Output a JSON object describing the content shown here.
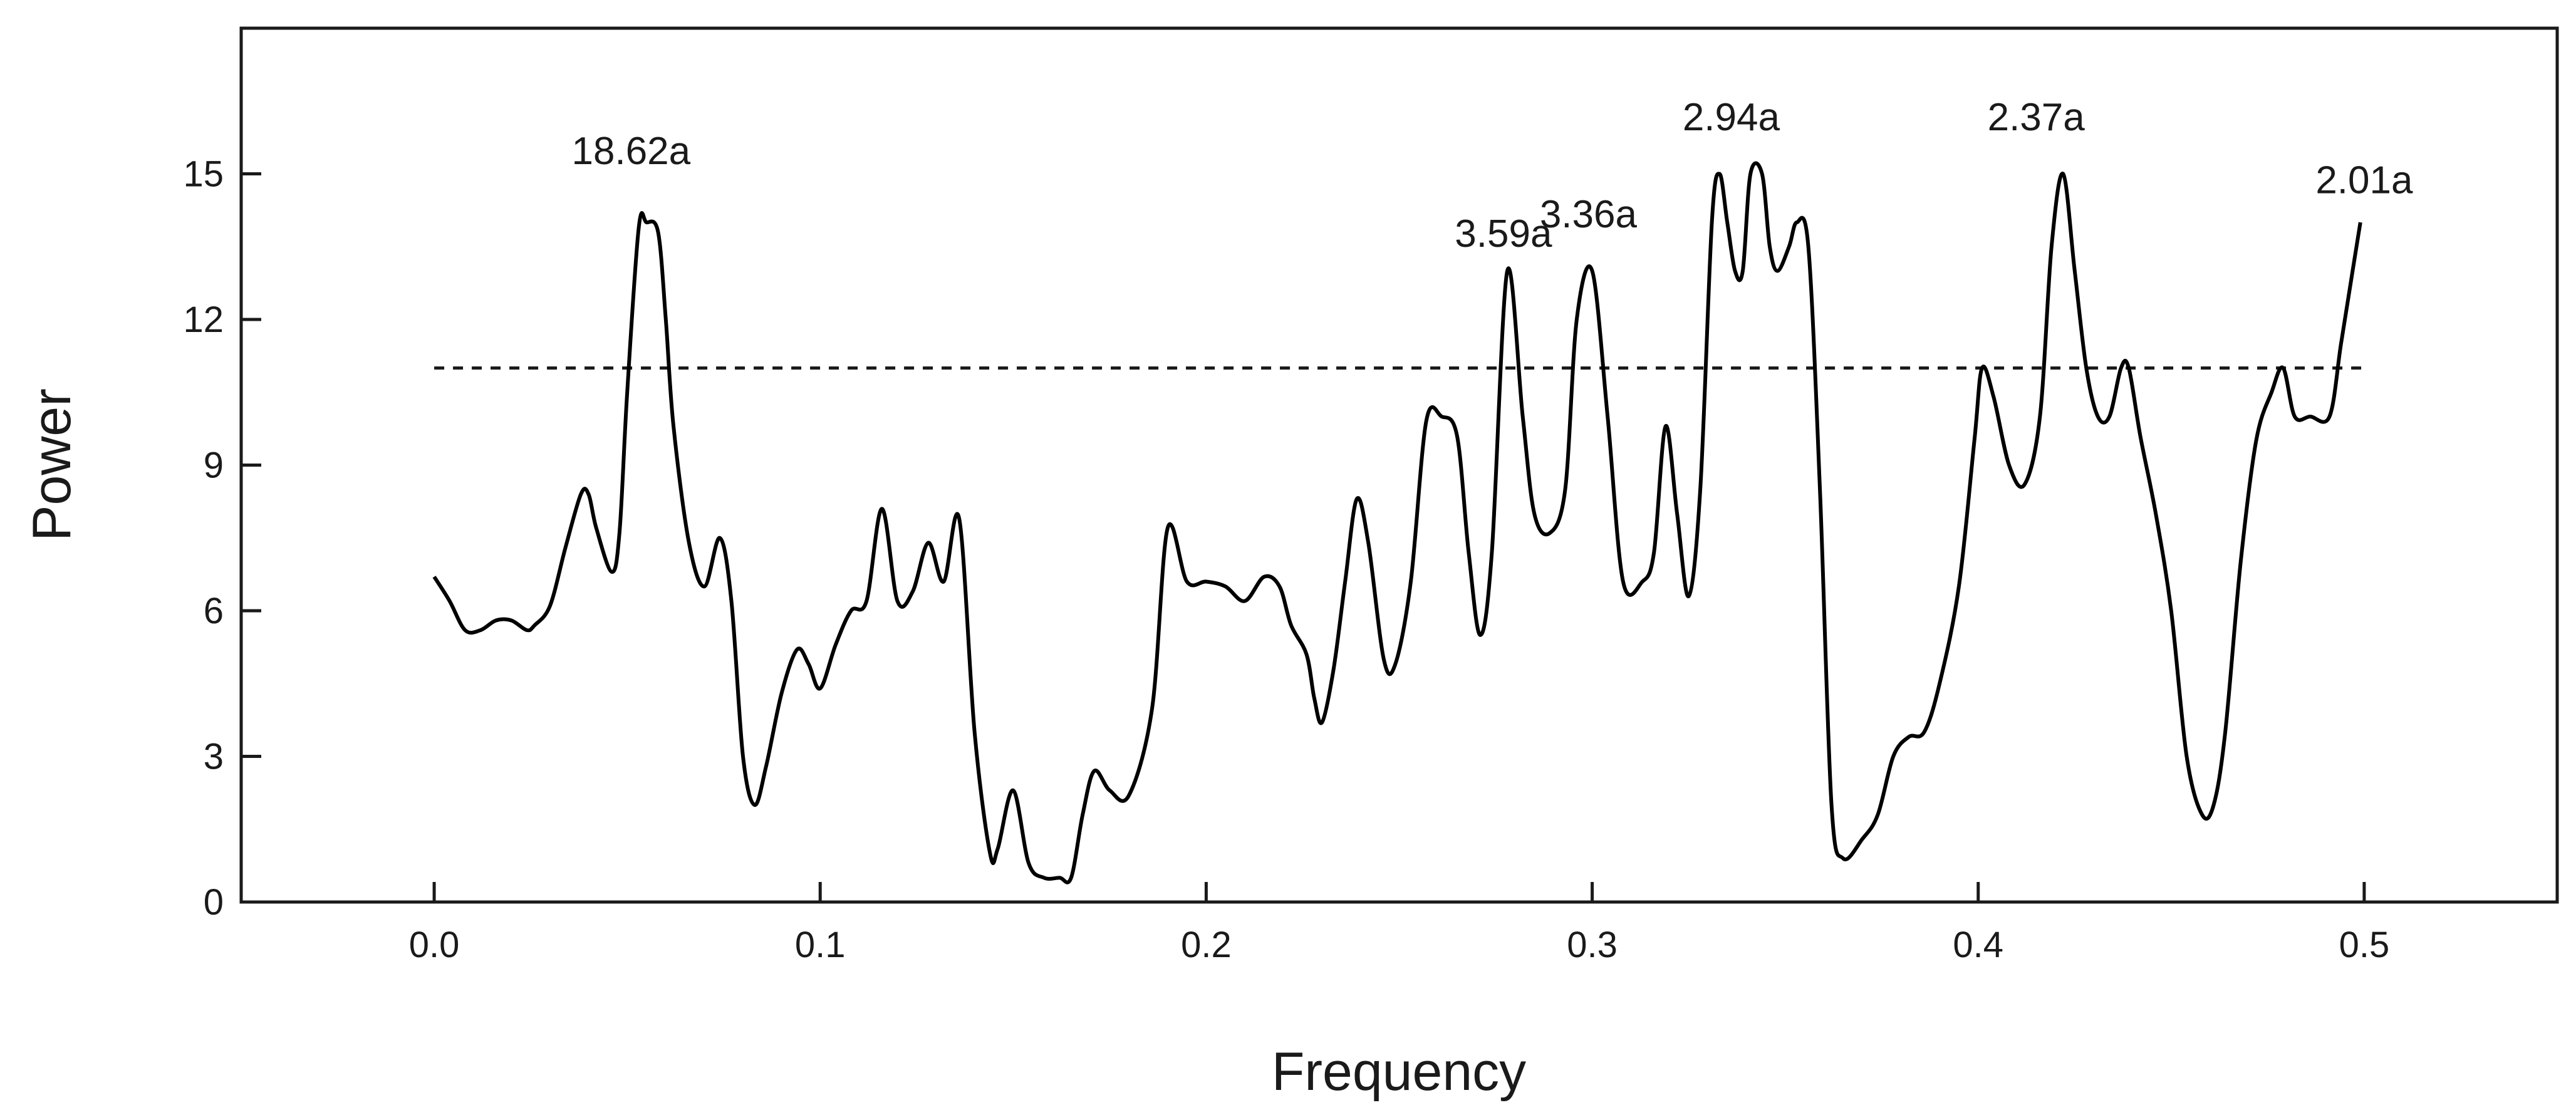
{
  "chart_data": {
    "type": "line",
    "xlabel": "Frequency",
    "ylabel": "Power",
    "xlim": [
      -0.05,
      0.55
    ],
    "ylim": [
      0,
      18
    ],
    "x_ticks": [
      0.0,
      0.1,
      0.2,
      0.3,
      0.4,
      0.5
    ],
    "x_tick_labels": [
      "0.0",
      "0.1",
      "0.2",
      "0.3",
      "0.4",
      "0.5"
    ],
    "y_ticks": [
      0,
      3,
      6,
      9,
      12,
      15
    ],
    "y_tick_labels": [
      "0",
      "3",
      "6",
      "9",
      "12",
      "15"
    ],
    "grid": false,
    "threshold": {
      "value": 11,
      "x_range": [
        0.0,
        0.5
      ],
      "style": "dashed"
    },
    "annotations": [
      {
        "text": "18.62a",
        "x": 0.051,
        "y": 15.2
      },
      {
        "text": "3.59a",
        "x": 0.277,
        "y": 13.5
      },
      {
        "text": "3.36a",
        "x": 0.299,
        "y": 13.9
      },
      {
        "text": "2.94a",
        "x": 0.336,
        "y": 15.9
      },
      {
        "text": "2.37a",
        "x": 0.415,
        "y": 15.9
      },
      {
        "text": "2.01a",
        "x": 0.5,
        "y": 14.6
      }
    ],
    "series": [
      {
        "x": [
          0.0,
          0.004,
          0.008,
          0.012,
          0.016,
          0.02,
          0.024,
          0.026,
          0.03,
          0.034,
          0.038,
          0.04,
          0.042,
          0.046,
          0.048,
          0.05,
          0.053,
          0.055,
          0.058,
          0.06,
          0.062,
          0.066,
          0.07,
          0.074,
          0.077,
          0.08,
          0.083,
          0.086,
          0.09,
          0.094,
          0.097,
          0.1,
          0.104,
          0.108,
          0.112,
          0.116,
          0.12,
          0.124,
          0.128,
          0.132,
          0.136,
          0.14,
          0.144,
          0.146,
          0.15,
          0.154,
          0.158,
          0.162,
          0.165,
          0.168,
          0.171,
          0.175,
          0.18,
          0.186,
          0.19,
          0.195,
          0.2,
          0.205,
          0.21,
          0.215,
          0.219,
          0.222,
          0.226,
          0.228,
          0.23,
          0.233,
          0.236,
          0.239,
          0.242,
          0.246,
          0.249,
          0.253,
          0.257,
          0.261,
          0.265,
          0.268,
          0.271,
          0.274,
          0.278,
          0.282,
          0.285,
          0.289,
          0.293,
          0.296,
          0.3,
          0.304,
          0.308,
          0.313,
          0.316,
          0.319,
          0.322,
          0.325,
          0.328,
          0.331,
          0.333,
          0.335,
          0.337,
          0.339,
          0.341,
          0.344,
          0.346,
          0.348,
          0.351,
          0.353,
          0.356,
          0.359,
          0.362,
          0.365,
          0.37,
          0.374,
          0.378,
          0.382,
          0.386,
          0.39,
          0.395,
          0.399,
          0.401,
          0.404,
          0.408,
          0.412,
          0.416,
          0.419,
          0.422,
          0.425,
          0.428,
          0.431,
          0.434,
          0.437,
          0.439,
          0.442,
          0.446,
          0.45,
          0.454,
          0.458,
          0.461,
          0.464,
          0.468,
          0.472,
          0.476,
          0.479,
          0.482,
          0.486,
          0.491,
          0.494,
          0.497,
          0.499
        ],
        "y": [
          6.7,
          6.2,
          5.6,
          5.6,
          5.8,
          5.8,
          5.6,
          5.7,
          6.1,
          7.3,
          8.4,
          8.4,
          7.7,
          6.8,
          7.6,
          10.5,
          13.9,
          14.0,
          13.8,
          12.0,
          9.8,
          7.4,
          6.5,
          7.5,
          6.2,
          3.0,
          2.0,
          2.8,
          4.3,
          5.2,
          4.9,
          4.4,
          5.3,
          6.0,
          6.2,
          8.1,
          6.2,
          6.4,
          7.4,
          6.6,
          7.9,
          3.5,
          1.0,
          1.1,
          2.3,
          0.8,
          0.5,
          0.5,
          0.5,
          1.8,
          2.7,
          2.3,
          2.2,
          4.0,
          7.7,
          6.6,
          6.6,
          6.5,
          6.2,
          6.7,
          6.5,
          5.7,
          5.1,
          4.2,
          3.7,
          4.8,
          6.6,
          8.3,
          7.4,
          5.0,
          4.9,
          6.6,
          9.9,
          10.0,
          9.6,
          7.2,
          5.5,
          7.2,
          13.0,
          10.0,
          8.0,
          7.6,
          8.5,
          12.0,
          13.0,
          10.0,
          6.6,
          6.6,
          7.2,
          9.8,
          8.0,
          6.3,
          8.5,
          14.0,
          15.0,
          14.0,
          13.0,
          13.0,
          15.0,
          15.0,
          13.5,
          13.0,
          13.5,
          14.0,
          13.5,
          8.5,
          2.0,
          0.9,
          1.3,
          1.8,
          3.0,
          3.4,
          3.5,
          4.5,
          6.5,
          9.5,
          11.0,
          10.4,
          9.0,
          8.6,
          10.0,
          13.5,
          15.0,
          13.0,
          11.0,
          10.0,
          10.0,
          11.0,
          11.0,
          9.6,
          8.0,
          6.0,
          3.0,
          1.8,
          2.0,
          3.5,
          7.0,
          9.5,
          10.5,
          11.0,
          10.0,
          10.0,
          10.0,
          11.5,
          13.0,
          14.0
        ]
      }
    ]
  }
}
